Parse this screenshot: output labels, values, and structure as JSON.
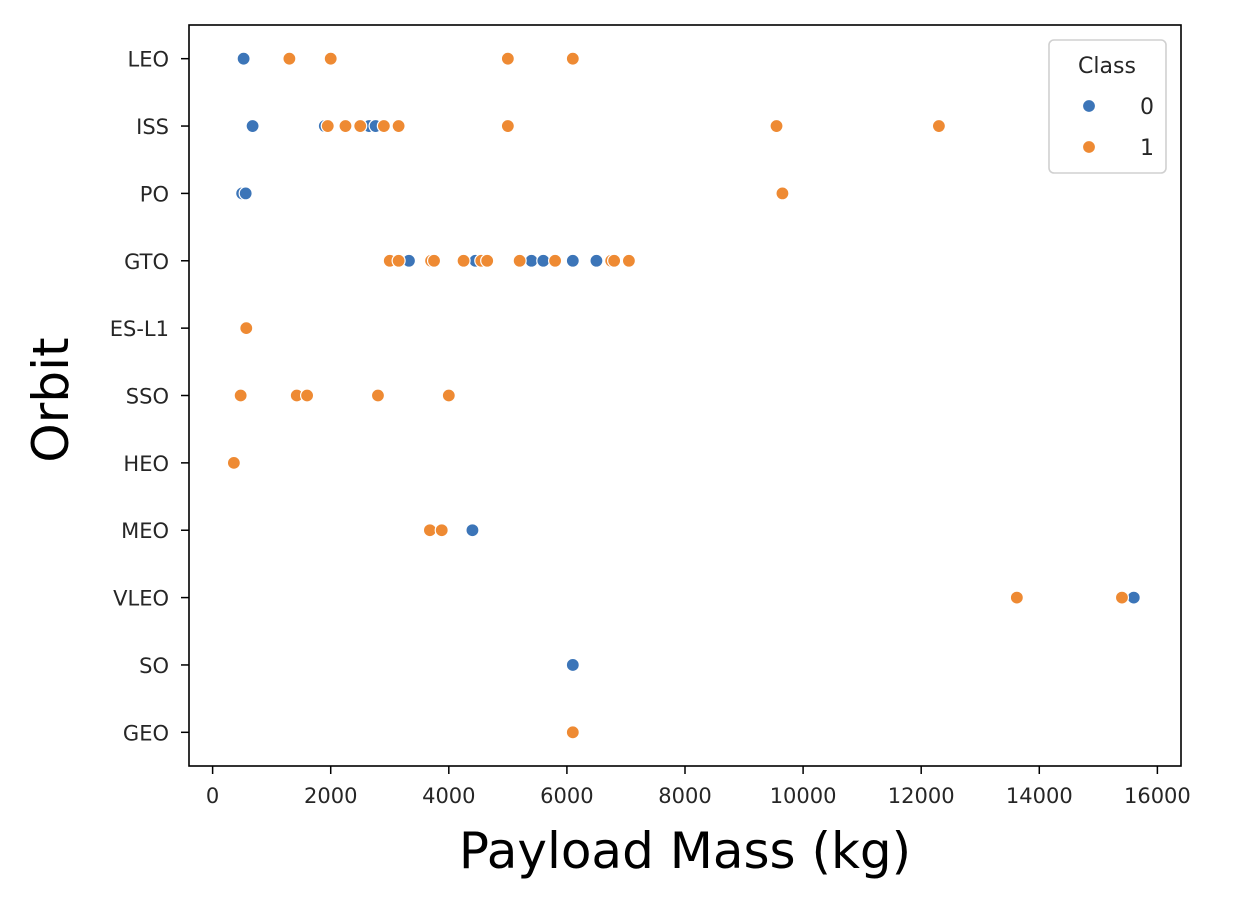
{
  "chart_data": {
    "type": "scatter",
    "xlabel": "Payload Mass (kg)",
    "ylabel": "Orbit",
    "xlim": [
      -400,
      16400
    ],
    "xticks": [
      0,
      2000,
      4000,
      6000,
      8000,
      10000,
      12000,
      14000,
      16000
    ],
    "categories": [
      "LEO",
      "ISS",
      "PO",
      "GTO",
      "ES-L1",
      "SSO",
      "HEO",
      "MEO",
      "VLEO",
      "SO",
      "GEO"
    ],
    "legend": {
      "title": "Class",
      "placement": "top-right"
    },
    "grid": false,
    "series": [
      {
        "name": "0",
        "color": "#3c75b8",
        "points": [
          {
            "x": 525,
            "y": "LEO"
          },
          {
            "x": 677,
            "y": "ISS"
          },
          {
            "x": 1900,
            "y": "ISS"
          },
          {
            "x": 2650,
            "y": "ISS"
          },
          {
            "x": 2760,
            "y": "ISS"
          },
          {
            "x": 500,
            "y": "PO"
          },
          {
            "x": 560,
            "y": "PO"
          },
          {
            "x": 3325,
            "y": "GTO"
          },
          {
            "x": 4450,
            "y": "GTO"
          },
          {
            "x": 5400,
            "y": "GTO"
          },
          {
            "x": 5600,
            "y": "GTO"
          },
          {
            "x": 6100,
            "y": "GTO"
          },
          {
            "x": 6500,
            "y": "GTO"
          },
          {
            "x": 4400,
            "y": "MEO"
          },
          {
            "x": 15600,
            "y": "VLEO"
          },
          {
            "x": 6100,
            "y": "SO"
          }
        ]
      },
      {
        "name": "1",
        "color": "#ee8a33",
        "points": [
          {
            "x": 1300,
            "y": "LEO"
          },
          {
            "x": 2000,
            "y": "LEO"
          },
          {
            "x": 5000,
            "y": "LEO"
          },
          {
            "x": 6100,
            "y": "LEO"
          },
          {
            "x": 1950,
            "y": "ISS"
          },
          {
            "x": 2250,
            "y": "ISS"
          },
          {
            "x": 2500,
            "y": "ISS"
          },
          {
            "x": 2900,
            "y": "ISS"
          },
          {
            "x": 3150,
            "y": "ISS"
          },
          {
            "x": 5000,
            "y": "ISS"
          },
          {
            "x": 9550,
            "y": "ISS"
          },
          {
            "x": 12300,
            "y": "ISS"
          },
          {
            "x": 9650,
            "y": "PO"
          },
          {
            "x": 3000,
            "y": "GTO"
          },
          {
            "x": 3150,
            "y": "GTO"
          },
          {
            "x": 3700,
            "y": "GTO"
          },
          {
            "x": 3750,
            "y": "GTO"
          },
          {
            "x": 4250,
            "y": "GTO"
          },
          {
            "x": 4550,
            "y": "GTO"
          },
          {
            "x": 4650,
            "y": "GTO"
          },
          {
            "x": 5200,
            "y": "GTO"
          },
          {
            "x": 5800,
            "y": "GTO"
          },
          {
            "x": 6750,
            "y": "GTO"
          },
          {
            "x": 6800,
            "y": "GTO"
          },
          {
            "x": 7050,
            "y": "GTO"
          },
          {
            "x": 570,
            "y": "ES-L1"
          },
          {
            "x": 475,
            "y": "SSO"
          },
          {
            "x": 1425,
            "y": "SSO"
          },
          {
            "x": 1600,
            "y": "SSO"
          },
          {
            "x": 2800,
            "y": "SSO"
          },
          {
            "x": 4000,
            "y": "SSO"
          },
          {
            "x": 360,
            "y": "HEO"
          },
          {
            "x": 3680,
            "y": "MEO"
          },
          {
            "x": 3880,
            "y": "MEO"
          },
          {
            "x": 13620,
            "y": "VLEO"
          },
          {
            "x": 15400,
            "y": "VLEO"
          },
          {
            "x": 6100,
            "y": "GEO"
          }
        ]
      }
    ]
  }
}
